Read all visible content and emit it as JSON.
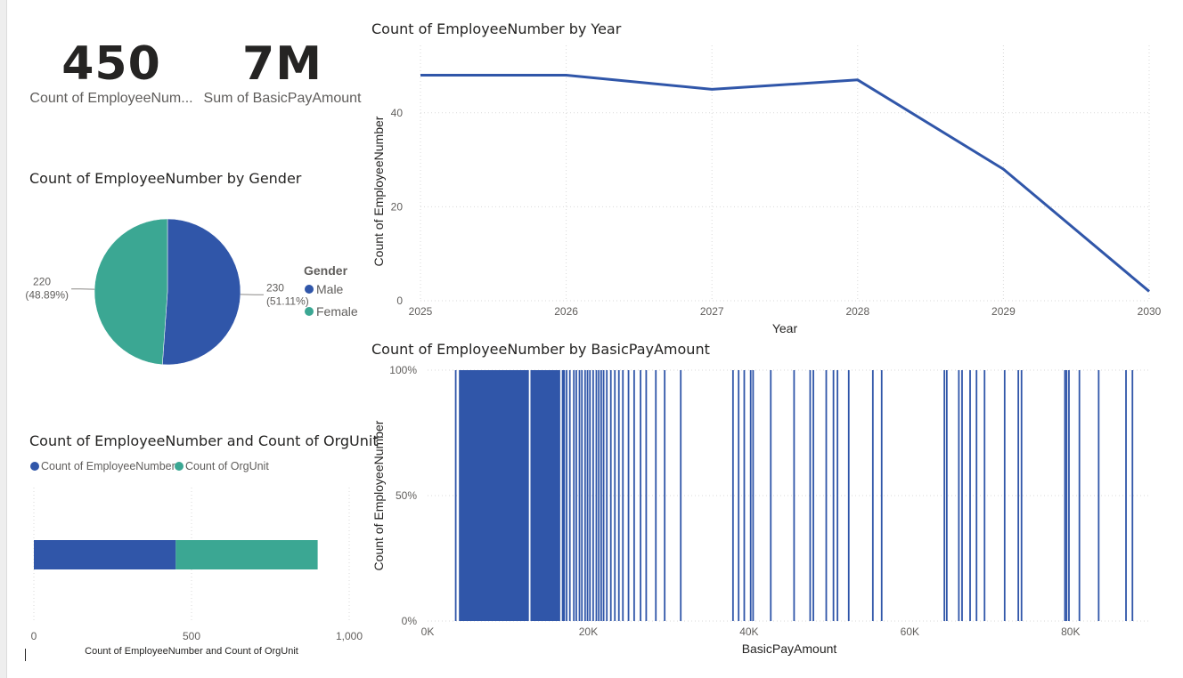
{
  "cards": [
    {
      "value": "450",
      "label": "Count of EmployeeNum..."
    },
    {
      "value": "7M",
      "label": "Sum of BasicPayAmount"
    }
  ],
  "colors": {
    "blue": "#3056a9",
    "teal": "#3ba793",
    "grid": "#d9d9d9",
    "axis_text": "#605e5c"
  },
  "chart_data": [
    {
      "type": "pie",
      "title": "Count of EmployeeNumber by Gender",
      "legend_title": "Gender",
      "legend_position": "right",
      "slices": [
        {
          "name": "Male",
          "value": 230,
          "label": "230",
          "percent_label": "(51.11%)",
          "color": "#3056a9"
        },
        {
          "name": "Female",
          "value": 220,
          "label": "220",
          "percent_label": "(48.89%)",
          "color": "#3ba793"
        }
      ]
    },
    {
      "type": "line",
      "title": "Count of EmployeeNumber by Year",
      "xlabel": "Year",
      "ylabel": "Count of EmployeeNumber",
      "x": [
        2025,
        2026,
        2027,
        2028,
        2029,
        2030
      ],
      "y": [
        48,
        48,
        45,
        47,
        28,
        2
      ],
      "ylim": [
        0,
        50
      ],
      "yticks": [
        0,
        20,
        40
      ],
      "grid": true,
      "color": "#3056a9"
    },
    {
      "type": "bar",
      "orientation": "horizontal-stacked",
      "title": "Count of EmployeeNumber and Count of OrgUnit",
      "xlabel": "Count of EmployeeNumber and Count of OrgUnit",
      "legend_position": "top-left",
      "series": [
        {
          "name": "Count of EmployeeNumber",
          "value": 450,
          "color": "#3056a9"
        },
        {
          "name": "Count of OrgUnit",
          "value": 450,
          "color": "#3ba793"
        }
      ],
      "xlim": [
        0,
        1000
      ],
      "xticks": [
        "0",
        "500",
        "1,000"
      ]
    },
    {
      "type": "bar",
      "orientation": "100%-stacked-column",
      "title": "Count of EmployeeNumber by BasicPayAmount",
      "xlabel": "BasicPayAmount",
      "ylabel": "Count of EmployeeNumber",
      "xlim": [
        0,
        90000
      ],
      "xticks": [
        "0K",
        "20K",
        "40K",
        "60K",
        "80K"
      ],
      "yticks": [
        "0%",
        "50%",
        "100%"
      ],
      "color": "#3056a9",
      "filled_ranges": [
        [
          3900,
          12600
        ],
        [
          12800,
          16500
        ],
        [
          16700,
          17100
        ]
      ],
      "x": [
        3500,
        17300,
        17700,
        18200,
        18500,
        18900,
        19200,
        19600,
        19900,
        20200,
        20600,
        21000,
        21300,
        21600,
        21900,
        22300,
        22800,
        23300,
        23800,
        24300,
        25000,
        25700,
        26500,
        27200,
        28400,
        29500,
        31500,
        38000,
        38700,
        39400,
        40200,
        40500,
        42700,
        45600,
        47600,
        48000,
        49600,
        50500,
        51000,
        52400,
        55400,
        56500,
        64300,
        64600,
        66100,
        66500,
        67500,
        68300,
        69300,
        71800,
        73500,
        73900,
        79300,
        79500,
        79800,
        81100,
        83500,
        86900,
        87700
      ]
    }
  ]
}
